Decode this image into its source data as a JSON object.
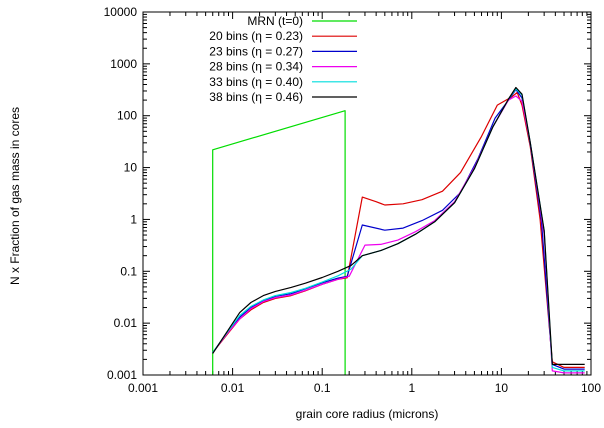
{
  "chart_data": {
    "type": "line",
    "xlabel": "grain core radius (microns)",
    "ylabel": "N x Fraction of gas mass in cores",
    "xscale": "log",
    "yscale": "log",
    "xlim": [
      0.001,
      100
    ],
    "ylim": [
      0.001,
      10000
    ],
    "x_ticks": [
      "0.001",
      "0.01",
      "0.1",
      "1",
      "10",
      "100"
    ],
    "y_ticks": [
      "0.001",
      "0.01",
      "0.1",
      "1",
      "10",
      "100",
      "1000",
      "10000"
    ],
    "legend_position": "top-right",
    "grid": false,
    "series": [
      {
        "name": "MRN (t=0)",
        "color": "#00dd00",
        "points": [
          [
            0.006,
            0.001
          ],
          [
            0.006,
            22
          ],
          [
            0.18,
            125
          ],
          [
            0.18,
            0.001
          ]
        ]
      },
      {
        "name": "20 bins (η = 0.23)",
        "color": "#dd0000",
        "points": [
          [
            0.006,
            0.0027
          ],
          [
            0.009,
            0.0065
          ],
          [
            0.012,
            0.012
          ],
          [
            0.016,
            0.018
          ],
          [
            0.022,
            0.025
          ],
          [
            0.03,
            0.03
          ],
          [
            0.045,
            0.034
          ],
          [
            0.065,
            0.042
          ],
          [
            0.1,
            0.056
          ],
          [
            0.15,
            0.07
          ],
          [
            0.19,
            0.075
          ],
          [
            0.28,
            2.7
          ],
          [
            0.4,
            2.2
          ],
          [
            0.5,
            1.9
          ],
          [
            0.8,
            2.0
          ],
          [
            1.3,
            2.4
          ],
          [
            2.2,
            3.5
          ],
          [
            3.5,
            8
          ],
          [
            6,
            40
          ],
          [
            9,
            160
          ],
          [
            13,
            230
          ],
          [
            15,
            280
          ],
          [
            17,
            160
          ],
          [
            21,
            25
          ],
          [
            27,
            1.0
          ],
          [
            37,
            0.0018
          ],
          [
            50,
            0.0014
          ],
          [
            85,
            0.0014
          ]
        ]
      },
      {
        "name": "23 bins (η = 0.27)",
        "color": "#0000cc",
        "points": [
          [
            0.006,
            0.0027
          ],
          [
            0.009,
            0.007
          ],
          [
            0.012,
            0.013
          ],
          [
            0.016,
            0.02
          ],
          [
            0.022,
            0.027
          ],
          [
            0.03,
            0.033
          ],
          [
            0.045,
            0.037
          ],
          [
            0.065,
            0.046
          ],
          [
            0.1,
            0.06
          ],
          [
            0.15,
            0.074
          ],
          [
            0.19,
            0.08
          ],
          [
            0.28,
            0.78
          ],
          [
            0.5,
            0.62
          ],
          [
            0.8,
            0.68
          ],
          [
            1.3,
            0.95
          ],
          [
            2.2,
            1.5
          ],
          [
            3.5,
            3.3
          ],
          [
            5.5,
            15
          ],
          [
            8.5,
            90
          ],
          [
            12,
            200
          ],
          [
            14.5,
            320
          ],
          [
            17,
            220
          ],
          [
            21,
            28
          ],
          [
            28,
            0.9
          ],
          [
            37,
            0.0016
          ],
          [
            50,
            0.0013
          ],
          [
            85,
            0.0013
          ]
        ]
      },
      {
        "name": "28 bins (η = 0.34)",
        "color": "#ee00ee",
        "points": [
          [
            0.006,
            0.0027
          ],
          [
            0.009,
            0.0068
          ],
          [
            0.012,
            0.012
          ],
          [
            0.016,
            0.019
          ],
          [
            0.022,
            0.026
          ],
          [
            0.03,
            0.031
          ],
          [
            0.045,
            0.035
          ],
          [
            0.065,
            0.043
          ],
          [
            0.1,
            0.056
          ],
          [
            0.15,
            0.07
          ],
          [
            0.2,
            0.08
          ],
          [
            0.3,
            0.32
          ],
          [
            0.45,
            0.33
          ],
          [
            0.7,
            0.4
          ],
          [
            1.1,
            0.58
          ],
          [
            1.8,
            0.95
          ],
          [
            3,
            2.2
          ],
          [
            5,
            10
          ],
          [
            8,
            60
          ],
          [
            12,
            200
          ],
          [
            14.5,
            240
          ],
          [
            17,
            190
          ],
          [
            21,
            30
          ],
          [
            30,
            0.5
          ],
          [
            37,
            0.0012
          ],
          [
            50,
            0.0011
          ],
          [
            85,
            0.0011
          ]
        ]
      },
      {
        "name": "33 bins (η = 0.40)",
        "color": "#00dddd",
        "points": [
          [
            0.006,
            0.0027
          ],
          [
            0.009,
            0.0072
          ],
          [
            0.012,
            0.014
          ],
          [
            0.016,
            0.021
          ],
          [
            0.022,
            0.028
          ],
          [
            0.03,
            0.034
          ],
          [
            0.045,
            0.039
          ],
          [
            0.065,
            0.047
          ],
          [
            0.1,
            0.062
          ],
          [
            0.15,
            0.082
          ],
          [
            0.21,
            0.11
          ],
          [
            0.28,
            0.2
          ],
          [
            0.45,
            0.25
          ],
          [
            0.7,
            0.34
          ],
          [
            1.1,
            0.52
          ],
          [
            1.8,
            0.9
          ],
          [
            3,
            2.1
          ],
          [
            5,
            9.5
          ],
          [
            8,
            60
          ],
          [
            12,
            210
          ],
          [
            14.5,
            330
          ],
          [
            17,
            250
          ],
          [
            21,
            30
          ],
          [
            30,
            0.6
          ],
          [
            37,
            0.0014
          ],
          [
            50,
            0.0012
          ],
          [
            85,
            0.0012
          ]
        ]
      },
      {
        "name": "38 bins (η = 0.46)",
        "color": "#000000",
        "points": [
          [
            0.006,
            0.0026
          ],
          [
            0.009,
            0.0075
          ],
          [
            0.012,
            0.016
          ],
          [
            0.016,
            0.025
          ],
          [
            0.022,
            0.034
          ],
          [
            0.03,
            0.041
          ],
          [
            0.045,
            0.049
          ],
          [
            0.065,
            0.059
          ],
          [
            0.1,
            0.076
          ],
          [
            0.15,
            0.1
          ],
          [
            0.21,
            0.13
          ],
          [
            0.28,
            0.2
          ],
          [
            0.45,
            0.25
          ],
          [
            0.7,
            0.34
          ],
          [
            1.1,
            0.52
          ],
          [
            1.8,
            0.9
          ],
          [
            3,
            2.1
          ],
          [
            5,
            9.5
          ],
          [
            8,
            60
          ],
          [
            12,
            210
          ],
          [
            14.5,
            350
          ],
          [
            17,
            260
          ],
          [
            21,
            30
          ],
          [
            30,
            0.6
          ],
          [
            37,
            0.0016
          ],
          [
            50,
            0.0016
          ],
          [
            85,
            0.0016
          ]
        ]
      }
    ]
  }
}
